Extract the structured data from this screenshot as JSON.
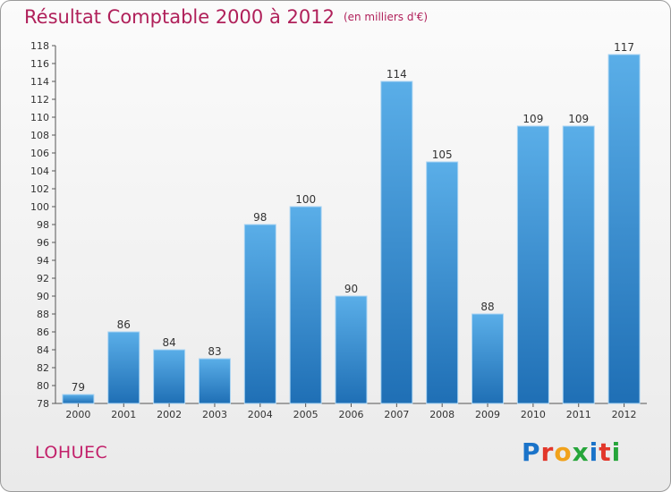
{
  "header": {
    "title": "Résultat Comptable 2000 à 2012",
    "unit": "(en milliers d'€)"
  },
  "footer": {
    "commune": "LOHUEC",
    "logo_letters": [
      "P",
      "r",
      "o",
      "x",
      "i",
      "t",
      "i"
    ]
  },
  "colors": {
    "title": "#b0205a",
    "bar_top": "#5aaee8",
    "bar_bottom": "#1f6fb5"
  },
  "chart_data": {
    "type": "bar",
    "title": "Résultat Comptable 2000 à 2012",
    "subtitle": "(en milliers d'€)",
    "xlabel": "",
    "ylabel": "",
    "categories": [
      "2000",
      "2001",
      "2002",
      "2003",
      "2004",
      "2005",
      "2006",
      "2007",
      "2008",
      "2009",
      "2010",
      "2011",
      "2012"
    ],
    "values": [
      79,
      86,
      84,
      83,
      98,
      100,
      90,
      114,
      105,
      88,
      109,
      109,
      117
    ],
    "ylim": [
      78,
      118
    ],
    "yticks": [
      78,
      80,
      82,
      84,
      86,
      88,
      90,
      92,
      94,
      96,
      98,
      100,
      102,
      104,
      106,
      108,
      110,
      112,
      114,
      116,
      118
    ],
    "grid": false,
    "data_labels": true
  }
}
